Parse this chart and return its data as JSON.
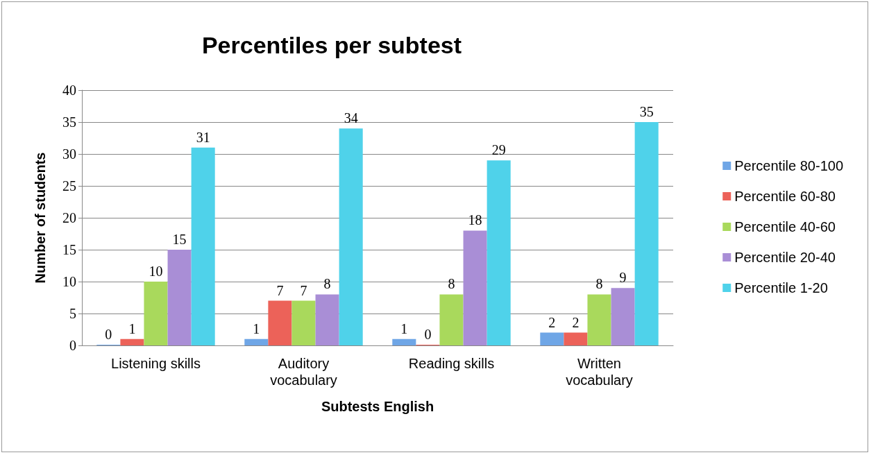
{
  "chart_data": {
    "type": "bar",
    "title": "Percentiles per subtest",
    "xlabel": "Subtests English",
    "ylabel": "Number of students",
    "categories": [
      "Listening skills",
      "Auditory\nvocabulary",
      "Reading skills",
      "Written\nvocabulary"
    ],
    "series": [
      {
        "name": "Percentile 80-100",
        "color": "#6fa6e6",
        "values": [
          0,
          1,
          1,
          2
        ]
      },
      {
        "name": "Percentile 60-80",
        "color": "#ec6259",
        "values": [
          1,
          7,
          0,
          2
        ]
      },
      {
        "name": "Percentile 40-60",
        "color": "#a9d95c",
        "values": [
          10,
          7,
          8,
          8
        ]
      },
      {
        "name": "Percentile 20-40",
        "color": "#a98ed6",
        "values": [
          15,
          8,
          18,
          9
        ]
      },
      {
        "name": "Percentile 1-20",
        "color": "#4fd2ea",
        "values": [
          31,
          34,
          29,
          35
        ]
      }
    ],
    "ylim": [
      0,
      40
    ],
    "yticks": [
      0,
      5,
      10,
      15,
      20,
      25,
      30,
      35,
      40
    ],
    "grid": "y",
    "legend": "right",
    "data_labels": true
  }
}
